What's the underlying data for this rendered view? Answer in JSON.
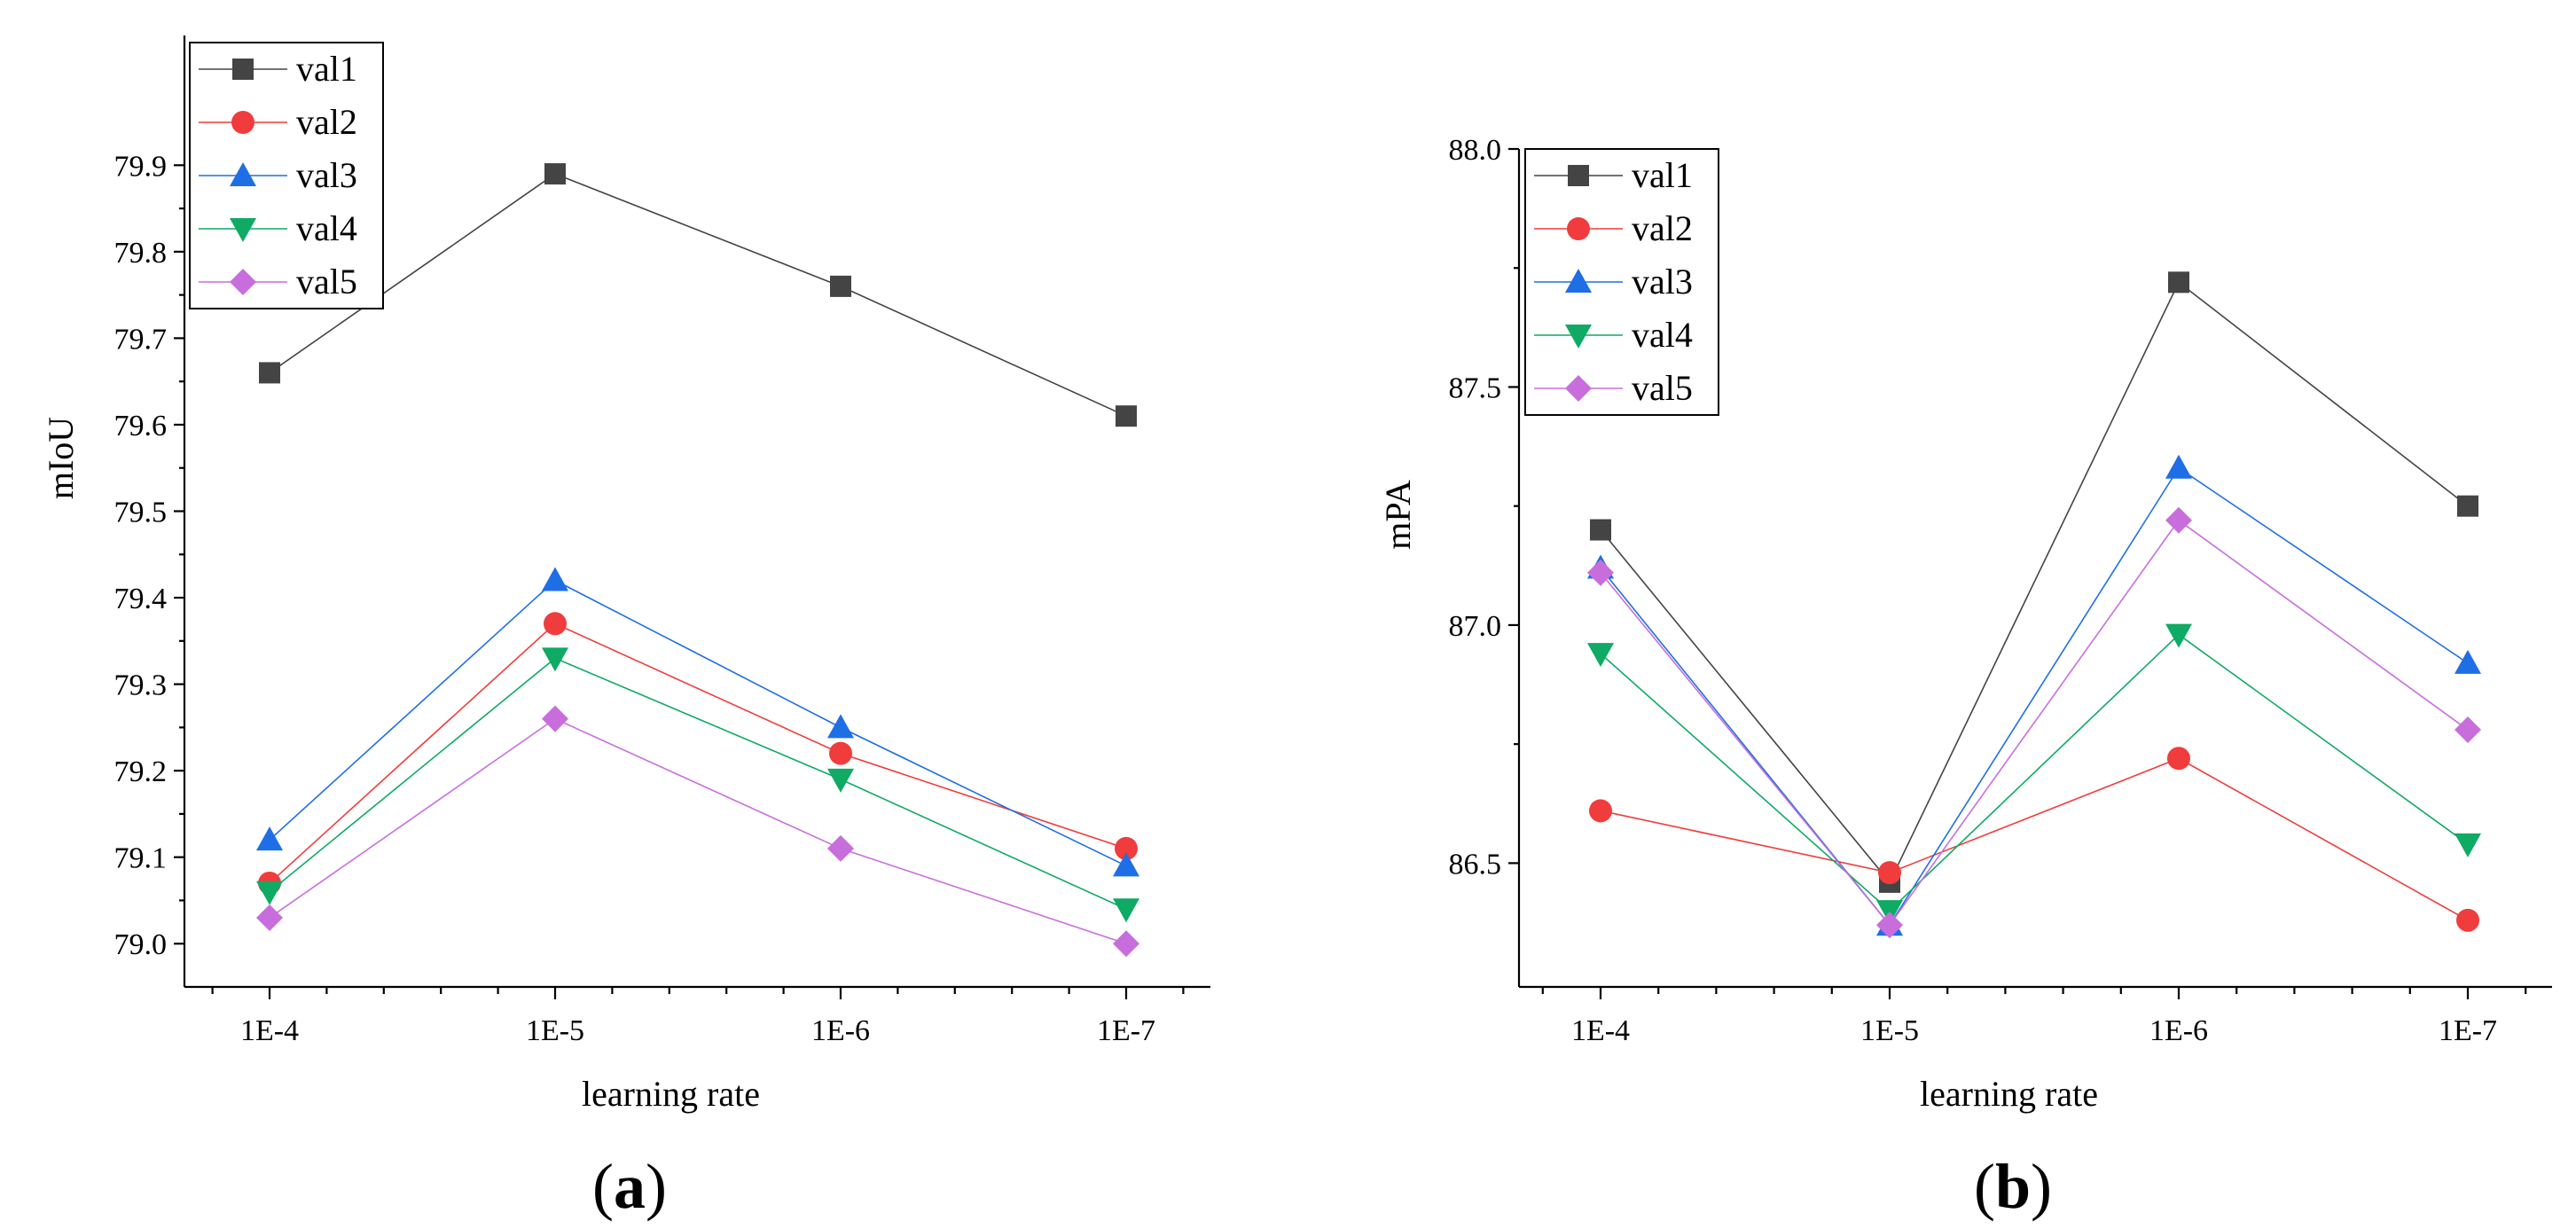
{
  "chart_data": [
    {
      "type": "line",
      "panel_label": "(a)",
      "panel_letter": "a",
      "xlabel": "learning rate",
      "ylabel": "mIoU",
      "categories": [
        "1E-4",
        "1E-5",
        "1E-6",
        "1E-7"
      ],
      "ylim": [
        78.95,
        80.05
      ],
      "yticks": [
        "79.0",
        "79.1",
        "79.2",
        "79.3",
        "79.4",
        "79.5",
        "79.6",
        "79.7",
        "79.8",
        "79.9"
      ],
      "grid": false,
      "legend": "top-left",
      "series": [
        {
          "name": "val1",
          "values": [
            79.66,
            79.89,
            79.76,
            79.61
          ],
          "color": "#444444",
          "marker": "square"
        },
        {
          "name": "val2",
          "values": [
            79.07,
            79.37,
            79.22,
            79.11
          ],
          "color": "#f03c3c",
          "marker": "circle"
        },
        {
          "name": "val3",
          "values": [
            79.12,
            79.42,
            79.25,
            79.09
          ],
          "color": "#1e6ee6",
          "marker": "triangle-up"
        },
        {
          "name": "val4",
          "values": [
            79.06,
            79.33,
            79.19,
            79.04
          ],
          "color": "#0faa64",
          "marker": "triangle-down"
        },
        {
          "name": "val5",
          "values": [
            79.03,
            79.26,
            79.11,
            79.0
          ],
          "color": "#c86edc",
          "marker": "diamond"
        }
      ]
    },
    {
      "type": "line",
      "panel_label": "(b)",
      "panel_letter": "b",
      "xlabel": "learning rate",
      "ylabel": "mPA",
      "categories": [
        "1E-4",
        "1E-5",
        "1E-6",
        "1E-7"
      ],
      "ylim": [
        86.24,
        88.0
      ],
      "yticks": [
        "86.5",
        "87.0",
        "87.5",
        "88.0"
      ],
      "grid": false,
      "legend": "top-left",
      "series": [
        {
          "name": "val1",
          "values": [
            87.2,
            86.46,
            87.72,
            87.25
          ],
          "color": "#444444",
          "marker": "square"
        },
        {
          "name": "val2",
          "values": [
            86.61,
            86.48,
            86.72,
            86.38
          ],
          "color": "#f03c3c",
          "marker": "circle"
        },
        {
          "name": "val3",
          "values": [
            87.12,
            86.37,
            87.33,
            86.92
          ],
          "color": "#1e6ee6",
          "marker": "triangle-up"
        },
        {
          "name": "val4",
          "values": [
            86.94,
            86.4,
            86.98,
            86.54
          ],
          "color": "#0faa64",
          "marker": "triangle-down"
        },
        {
          "name": "val5",
          "values": [
            87.11,
            86.37,
            87.22,
            86.78
          ],
          "color": "#c86edc",
          "marker": "diamond"
        }
      ]
    }
  ]
}
